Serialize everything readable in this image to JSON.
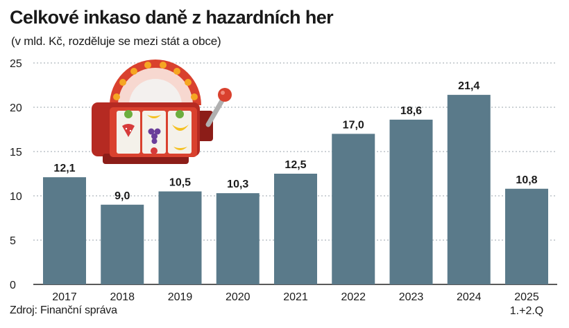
{
  "chart_data": {
    "type": "bar",
    "title": "Celkové inkaso daně z hazardních her",
    "subtitle": "(v mld. Kč, rozděluje se mezi stát a obce)",
    "categories": [
      "2017",
      "2018",
      "2019",
      "2020",
      "2021",
      "2022",
      "2023",
      "2024",
      "2025"
    ],
    "category_sublabels": [
      "",
      "",
      "",
      "",
      "",
      "",
      "",
      "",
      "1.+2.Q"
    ],
    "values": [
      12.1,
      9.0,
      10.5,
      10.3,
      12.5,
      17.0,
      18.6,
      21.4,
      10.8
    ],
    "value_labels": [
      "12,1",
      "9,0",
      "10,5",
      "10,3",
      "12,5",
      "17,0",
      "18,6",
      "21,4",
      "10,8"
    ],
    "yticks": [
      0,
      5,
      10,
      15,
      20,
      25
    ],
    "ylim": [
      0,
      25
    ],
    "grid": true,
    "legend": "none",
    "colors": {
      "bar": "#5a7a8a",
      "grid": "#9aa3ab",
      "text": "#1a1a1a"
    },
    "illustration": "slot-machine-icon"
  },
  "source": "Zdroj: Finanční správa"
}
